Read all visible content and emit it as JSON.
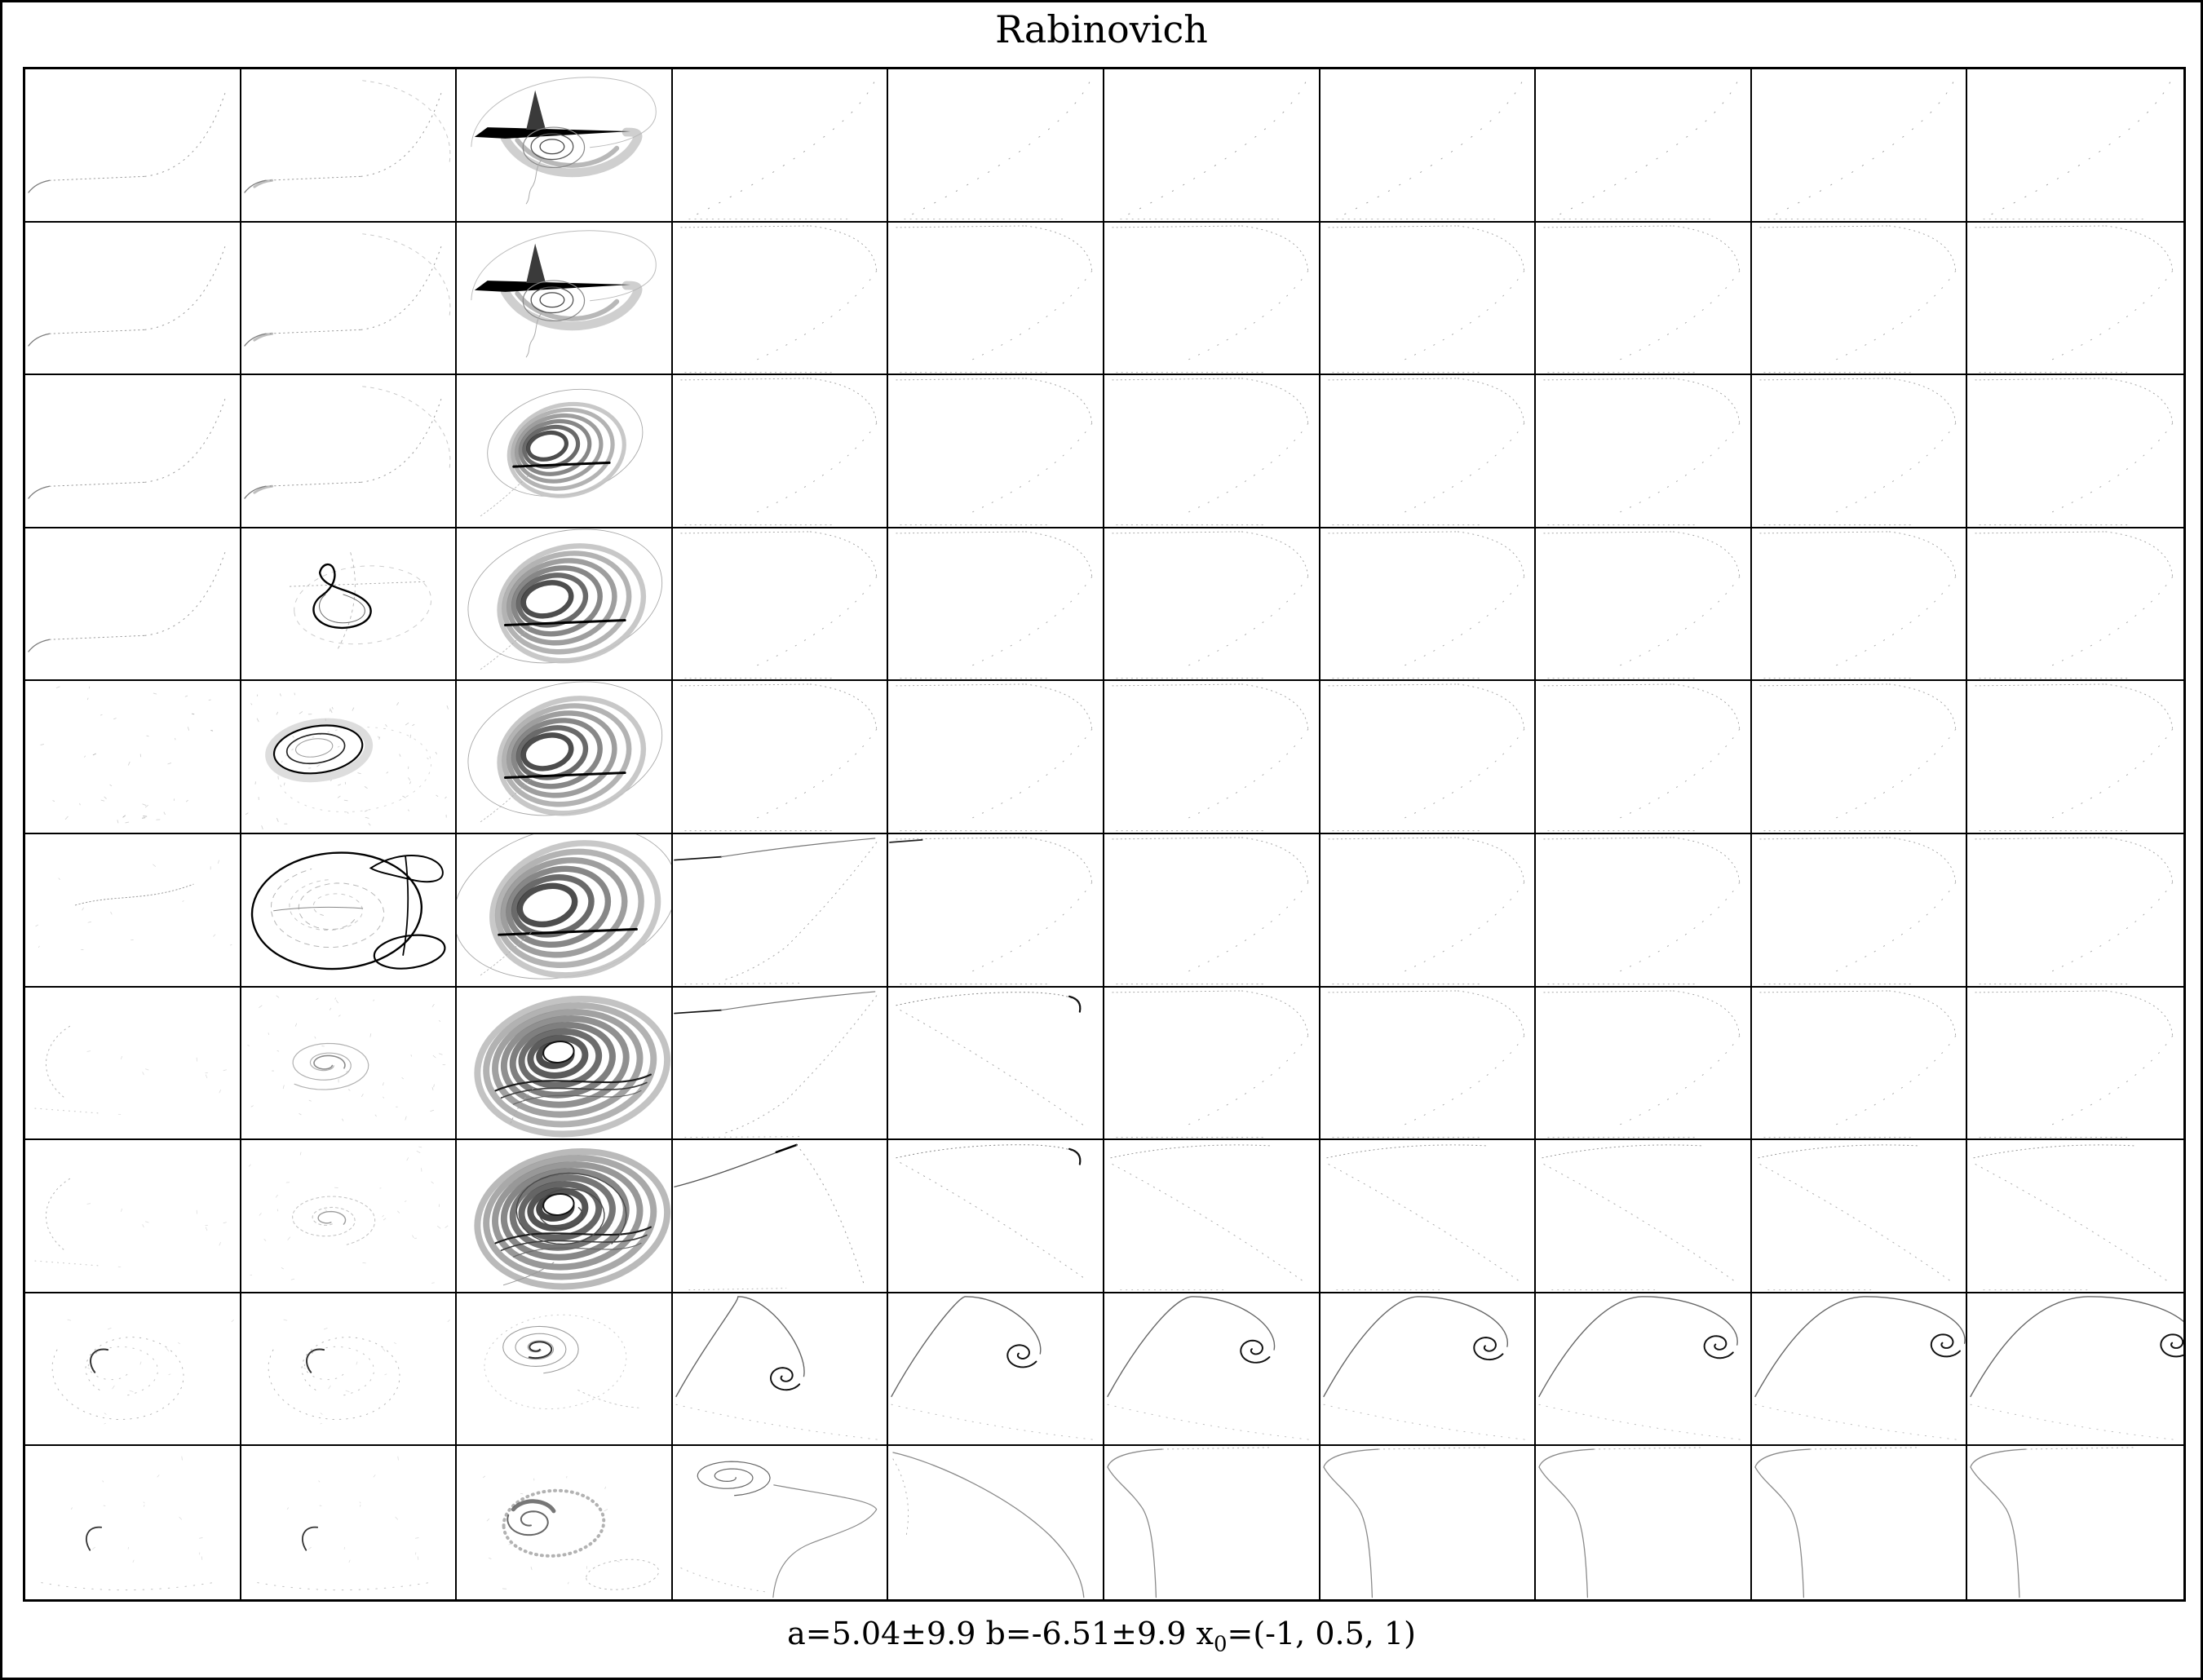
{
  "title": "Rabinovich",
  "caption": {
    "main": "a=5.04±9.9 b=-6.51±9.9 x",
    "sub": "0",
    "tail": "=(-1, 0.5, 1)"
  },
  "colors": {
    "background": "#ffffff",
    "frame": "#000000",
    "grid_line": "#000000",
    "ink_dark": "#000000",
    "ink_mid": "#777777",
    "ink_faint": "#bbbbbb"
  },
  "chart_data": {
    "type": "scatter",
    "title": "Rabinovich",
    "layout": "10x10 grid of small-multiple phase portraits, no axes, no tick labels, black cell borders",
    "legend_position": "none",
    "grid": {
      "rows": 10,
      "cols": 10
    },
    "parameters": {
      "a": "5.04±9.9",
      "b": "-6.51±9.9",
      "x0": "(-1, 0.5, 1)"
    },
    "cells": [
      [
        "hs",
        "hs2",
        "bird",
        "fd",
        "fd",
        "fd",
        "fd",
        "fd",
        "fd",
        "fd"
      ],
      [
        "hs",
        "hs2",
        "bird",
        "fc",
        "fc",
        "fc",
        "fc",
        "fc",
        "fc",
        "fc"
      ],
      [
        "hs",
        "hs2",
        "cres:0.8",
        "fc",
        "fc",
        "fc",
        "fc",
        "fc",
        "fc",
        "fc"
      ],
      [
        "hs",
        "ribbon",
        "cres:1.0",
        "fc",
        "fc",
        "fc",
        "fc",
        "fc",
        "fc",
        "fc"
      ],
      [
        "speck",
        "rings",
        "cres:1.0",
        "fc",
        "fc",
        "fc",
        "fc",
        "fc",
        "fc",
        "fc"
      ],
      [
        "sdots",
        "pretzel",
        "cres:1.15",
        "topline",
        "fcdark",
        "fc",
        "fc",
        "fc",
        "fc",
        "fc"
      ],
      [
        "arcdots",
        "swirl",
        "dense1",
        "topline",
        "cresttip",
        "fc",
        "fc",
        "fc",
        "fc",
        "fc"
      ],
      [
        "arcdots",
        "swirl2",
        "dense2",
        "wavecrest3",
        "cresttip",
        "fcdiag",
        "fcdiag",
        "fcdiag",
        "fcdiag",
        "fcdiag"
      ],
      [
        "spiraldots",
        "spiraldots",
        "tearspiral",
        "ws:0.52,0.55",
        "ws:0.62,0.40",
        "ws:0.70,0.37",
        "ws:0.78,0.35",
        "ws:0.85,0.34",
        "ws:0.90,0.33",
        "ws:0.96,0.33"
      ],
      [
        "hookdots",
        "hookdots",
        "hatchspiral",
        "spiraltop",
        "sweep",
        "drop",
        "drop",
        "drop",
        "drop",
        "drop"
      ]
    ],
    "cell_types_legend": {
      "hs": "faint dotted hockey-stick trajectory rising to top-right",
      "hs2": "hockey-stick trajectory with dashed outer ellipse arc",
      "bird": "dark bird-shaped Rabinovich attractor with spike, black wedge, spiral rings and gray fan",
      "cres": "crescent/banana funnel attractor of concentric gray bands with black base line and thin outer loop",
      "dense1": "dense donut attractor, gray bands filling cell with small white hole and dark crossing bands",
      "dense2": "denser donut attractor with extra dark spiral rings",
      "ribbon": "small dark teardrop loop with upper twist, dashed surrounding ellipse",
      "rings": "two dark concentric rings with gray halo and speckle noise",
      "pretzel": "large dark loop with pinched upper-right leaf and small lower-right loop",
      "swirl": "faint gray spiral with speckles",
      "swirl2": "very faint spiral with speckles",
      "tearspiral": "light teardrop multi-ring spiral with dark inner hook",
      "hatchspiral": "light spiral with dark cap, hatched ring and dotted ellipse tail",
      "spiraldots": "large dotted arc with small dark hook",
      "hookdots": "small dark hook with sparse dotted arc",
      "speck": "sparse speckle marks",
      "sdots": "faint dotted S-curve",
      "arcdots": "faint dotted C-arc on left",
      "fd": "very sparse dotted diagonal rising to top-right",
      "fc": "faint dotted curve along top edge bending down the right side",
      "fcdark": "faint dotted curve with short dark tick at top-left",
      "fcdiag": "faint dotted top arc plus dotted diagonal to bottom-right",
      "topline": "dark line along top-left fading right, dotted diagonal falling to lower-left",
      "cresttip": "dotted top arc with short dark hook at its right tip, dotted diagonal",
      "wavecrest3": "solid curve rising to dark apex at top-center, dotted fall to bottom-right",
      "ws": "breaking-wave curve sweeping over the top and curling into a dark spiral (parameter = spiral position)",
      "spiraltop": "flat elliptical spiral at top-left with S-curve descending to bottom",
      "sweep": "curve sweeping diagonally from top-left to bottom-right",
      "drop": "curve pointing to left edge then falling vertically to bottom"
    }
  }
}
